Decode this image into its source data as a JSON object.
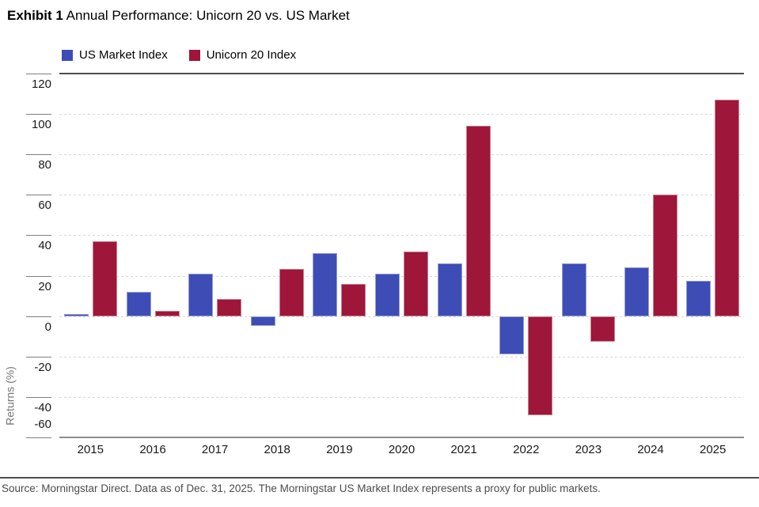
{
  "title": {
    "exhibit": "Exhibit 1",
    "text": "Annual Performance: Unicorn 20 vs. US Market"
  },
  "legend": [
    {
      "label": "US Market Index",
      "color": "#3E4DB5"
    },
    {
      "label": "Unicorn 20 Index",
      "color": "#9E1639"
    }
  ],
  "chart_data": {
    "type": "bar",
    "categories": [
      "2015",
      "2016",
      "2017",
      "2018",
      "2019",
      "2020",
      "2021",
      "2022",
      "2023",
      "2024",
      "2025"
    ],
    "series": [
      {
        "name": "US Market Index",
        "color": "#3E4DB5",
        "values": [
          1,
          12,
          21,
          -5,
          31,
          21,
          26,
          -19,
          26,
          24,
          17.5
        ]
      },
      {
        "name": "Unicorn 20 Index",
        "color": "#9E1639",
        "values": [
          37,
          2.5,
          8.5,
          23.5,
          16,
          32,
          94,
          -49,
          -12.5,
          60,
          107
        ]
      }
    ],
    "title": "Annual Performance: Unicorn 20 vs. US Market",
    "xlabel": "",
    "ylabel": "Returns (%)",
    "ylim": [
      -60,
      120
    ],
    "ytick_step": 20,
    "grid": true,
    "legend_position": "top"
  },
  "footer": {
    "source": "Source: Morningstar Direct. Data as of Dec. 31, 2025. The Morningstar US Market Index represents a proxy for public markets."
  }
}
